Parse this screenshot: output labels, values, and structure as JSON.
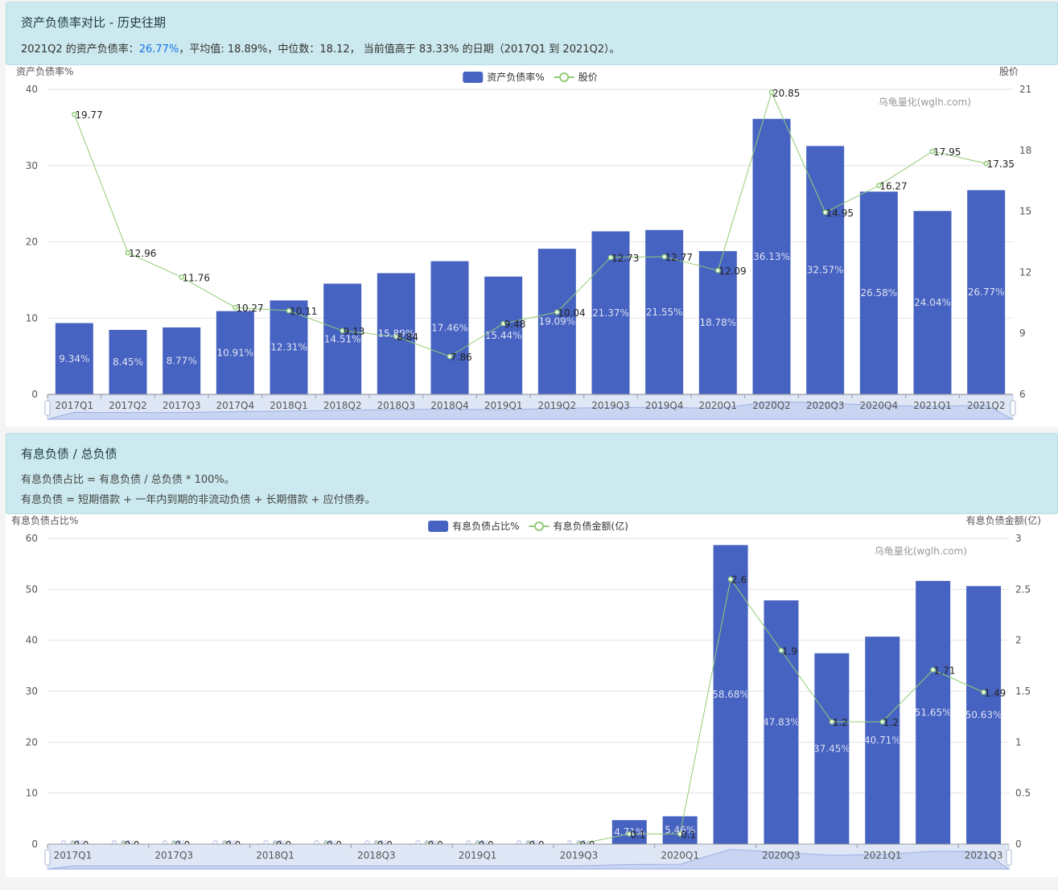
{
  "section1": {
    "title": "资产负债率对比 - 历史往期",
    "summary_prefix": "2021Q2 的资产负债率：",
    "summary_current": "26.77%",
    "summary_rest": "，平均值: 18.89%，中位数：18.12， 当前值高于 83.33% 的日期（2017Q1 到 2021Q2）。"
  },
  "section2": {
    "title": "有息负债 / 总负债",
    "line1": "有息负债占比 = 有息负债 / 总负债 * 100%。",
    "line2": "有息负债 = 短期借款 + 一年内到期的非流动负债 + 长期借款 + 应付债券。"
  },
  "watermark": "乌龟量化(wglh.com)",
  "colors": {
    "bar": "#4763c1",
    "line": "#91cc75",
    "header_bg": "#cbe9ee",
    "highlight": "#1a73e8"
  },
  "chart_data": [
    {
      "type": "bar",
      "ylabel": "资产负债率%",
      "y2label": "股价",
      "ylim": [
        0,
        40
      ],
      "yticks": [
        0,
        10,
        20,
        30,
        40
      ],
      "y2lim": [
        6,
        21
      ],
      "y2ticks": [
        "6",
        "9",
        "12",
        "15",
        "18",
        "21"
      ],
      "legend_position": "top-center",
      "categories": [
        "2017Q1",
        "2017Q2",
        "2017Q3",
        "2017Q4",
        "2018Q1",
        "2018Q2",
        "2018Q3",
        "2018Q4",
        "2019Q1",
        "2019Q2",
        "2019Q3",
        "2019Q4",
        "2020Q1",
        "2020Q2",
        "2020Q3",
        "2020Q4",
        "2021Q1",
        "2021Q2"
      ],
      "series": [
        {
          "name": "资产负债率%",
          "type": "bar",
          "axis": "left",
          "values": [
            9.34,
            8.45,
            8.77,
            10.91,
            12.31,
            14.51,
            15.89,
            17.46,
            15.44,
            19.09,
            21.37,
            21.55,
            18.78,
            36.13,
            32.57,
            26.58,
            24.04,
            26.77
          ],
          "labels": [
            "9.34%",
            "8.45%",
            "8.77%",
            "10.91%",
            "12.31%",
            "14.51%",
            "15.89%",
            "17.46%",
            "15.44%",
            "19.09%",
            "21.37%",
            "21.55%",
            "18.78%",
            "36.13%",
            "32.57%",
            "26.58%",
            "24.04%",
            "26.77%"
          ]
        },
        {
          "name": "股价",
          "type": "line",
          "axis": "right",
          "values": [
            19.77,
            12.96,
            11.76,
            10.27,
            10.11,
            9.13,
            8.84,
            7.86,
            9.48,
            10.04,
            12.73,
            12.77,
            12.09,
            20.85,
            14.95,
            16.27,
            17.95,
            17.35
          ],
          "labels": [
            "19.77",
            "12.96",
            "11.76",
            "10.27",
            "10.11",
            "9.13",
            "8.84",
            "7.86",
            "9.48",
            "10.04",
            "12.73",
            "12.77",
            "12.09",
            "20.85",
            "14.95",
            "16.27",
            "17.95",
            "17.35"
          ]
        }
      ]
    },
    {
      "type": "bar",
      "ylabel": "有息负债占比%",
      "y2label": "有息负债金额(亿)",
      "ylim": [
        0,
        60
      ],
      "yticks": [
        0,
        10,
        20,
        30,
        40,
        50,
        60
      ],
      "y2lim": [
        0,
        3
      ],
      "y2ticks": [
        "0",
        "0.5",
        "1",
        "1.5",
        "2",
        "2.5",
        "3"
      ],
      "legend_position": "top-center",
      "categories": [
        "2017Q1",
        "2017Q2",
        "2017Q3",
        "2017Q4",
        "2018Q1",
        "2018Q2",
        "2018Q3",
        "2018Q4",
        "2019Q1",
        "2019Q2",
        "2019Q3",
        "2019Q4",
        "2020Q1",
        "2020Q2",
        "2020Q3",
        "2020Q4",
        "2021Q1",
        "2021Q2",
        "2021Q3"
      ],
      "shown_tick_labels": [
        "2017Q1",
        "2017Q3",
        "2018Q1",
        "2018Q3",
        "2019Q1",
        "2019Q3",
        "2020Q1",
        "2020Q3",
        "2021Q1",
        "2021Q3"
      ],
      "series": [
        {
          "name": "有息负债占比%",
          "type": "bar",
          "axis": "left",
          "values": [
            0,
            0,
            0,
            0,
            0,
            0,
            0,
            0,
            0,
            0,
            0,
            4.71,
            5.46,
            58.68,
            47.83,
            37.45,
            40.71,
            51.65,
            50.63
          ],
          "labels": [
            "0.0%",
            "0.0%",
            "0.0%",
            "0.0%",
            "0.0%",
            "0.0%",
            "0.0%",
            "0.0%",
            "0.0%",
            "0.0%",
            "0.0%",
            "4.71%",
            "5.46%",
            "58.68%",
            "47.83%",
            "37.45%",
            "40.71%",
            "51.65%",
            "50.63%"
          ]
        },
        {
          "name": "有息负债金额(亿)",
          "type": "line",
          "axis": "right",
          "values": [
            0,
            0,
            0,
            0,
            0,
            0,
            0,
            0,
            0,
            0,
            0,
            0.1,
            0.1,
            2.6,
            1.9,
            1.2,
            1.2,
            1.71,
            1.49
          ],
          "labels": [
            "0.0",
            "0.0",
            "0.0",
            "0.0",
            "0.0",
            "0.0",
            "0.0",
            "0.0",
            "0.0",
            "0.0",
            "0.0",
            "0.1",
            "0.1",
            "2.6",
            "1.9",
            "1.2",
            "1.2",
            "1.71",
            "1.49"
          ]
        }
      ]
    }
  ]
}
